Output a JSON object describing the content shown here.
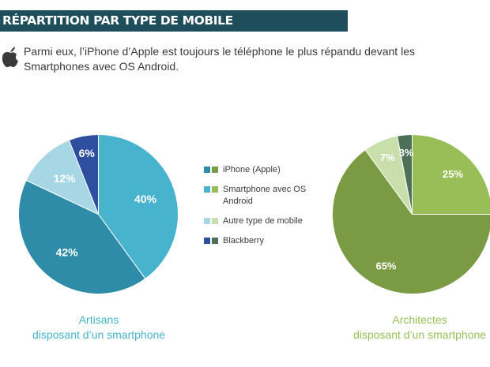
{
  "header": {
    "title": "RÉPARTITION PAR TYPE DE MOBILE"
  },
  "intro": {
    "icon": "apple-icon",
    "line1": "Parmi eux, l’iPhone d’Apple est toujours le téléphone le plus répandu devant les",
    "line2": "Smartphones avec OS Android."
  },
  "legend": {
    "items": [
      {
        "label": "iPhone (Apple)",
        "colors": [
          "#2f8ca8",
          "#7a9a44"
        ]
      },
      {
        "label": "Smartphone avec OS Android",
        "label_line1": "Smartphone avec OS",
        "label_line2": "Android",
        "colors": [
          "#47b3cd",
          "#99be58"
        ]
      },
      {
        "label": "Autre type de mobile",
        "colors": [
          "#a7d6e4",
          "#c8dfac"
        ]
      },
      {
        "label": "Blackberry",
        "colors": [
          "#2e4ea0",
          "#4d7059"
        ]
      }
    ]
  },
  "chart_data": [
    {
      "type": "pie",
      "caption_line1": "Artisans",
      "caption_line2": "disposant d’un smartphone",
      "caption_color": "#47b3cd",
      "slices": [
        {
          "name": "iPhone (Apple)",
          "value": 42,
          "label": "42%",
          "color": "#2f8ca8"
        },
        {
          "name": "Smartphone avec OS Android",
          "value": 40,
          "label": "40%",
          "color": "#47b3cd"
        },
        {
          "name": "Autre type de mobile",
          "value": 12,
          "label": "12%",
          "color": "#a7d6e4"
        },
        {
          "name": "Blackberry",
          "value": 6,
          "label": "6%",
          "color": "#2e4ea0"
        }
      ]
    },
    {
      "type": "pie",
      "caption_line1": "Architectes",
      "caption_line2": "disposant d’un smartphone",
      "caption_color": "#99be58",
      "slices": [
        {
          "name": "iPhone (Apple)",
          "value": 65,
          "label": "65%",
          "color": "#7a9a44"
        },
        {
          "name": "Smartphone avec OS Android",
          "value": 25,
          "label": "25%",
          "color": "#99be58"
        },
        {
          "name": "Autre type de mobile",
          "value": 7,
          "label": "7%",
          "color": "#c8dfac"
        },
        {
          "name": "Blackberry",
          "value": 3,
          "label": "3%",
          "color": "#4d7059"
        }
      ]
    }
  ]
}
